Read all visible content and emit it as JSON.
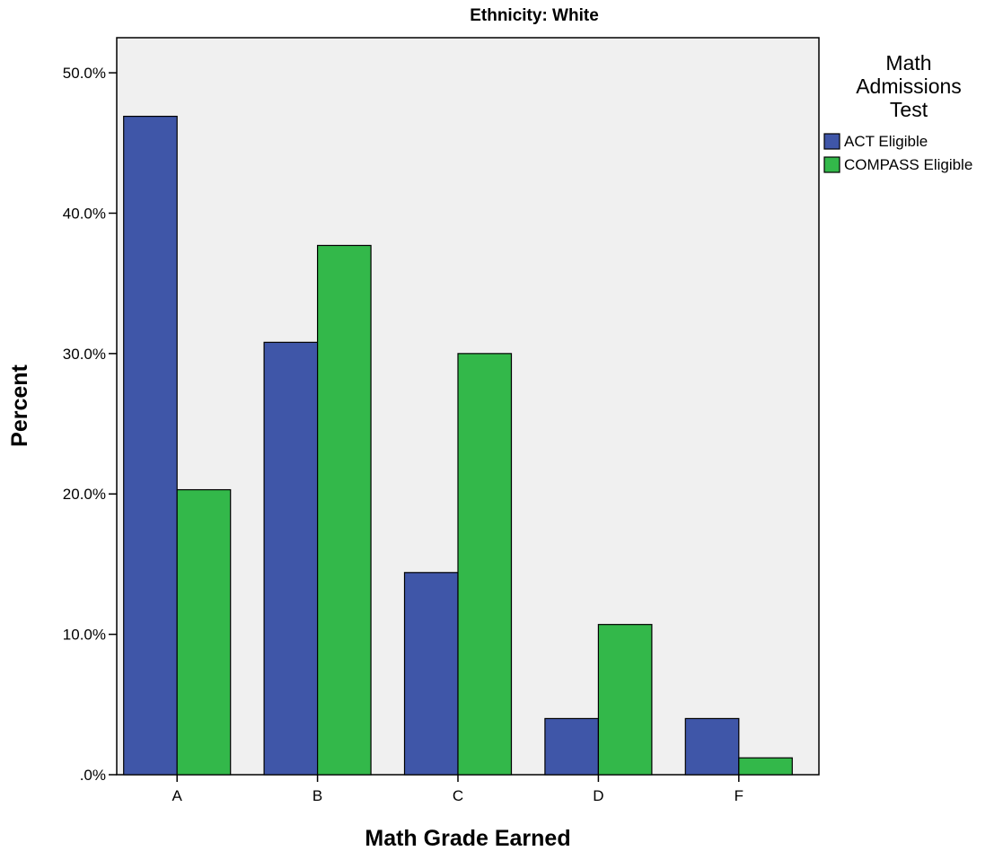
{
  "chart_data": {
    "type": "bar",
    "title": "Ethnicity: White",
    "xlabel": "Math Grade Earned",
    "ylabel": "Percent",
    "categories": [
      "A",
      "B",
      "C",
      "D",
      "F"
    ],
    "y_tick_labels": [
      ".0%",
      "10.0%",
      "20.0%",
      "30.0%",
      "40.0%",
      "50.0%"
    ],
    "y_ticks": [
      0,
      10,
      20,
      30,
      40,
      50
    ],
    "ylim": [
      0,
      52.5
    ],
    "grid": false,
    "legend": {
      "title_lines": [
        "Math",
        "Admissions",
        "Test"
      ],
      "placement": "right"
    },
    "series": [
      {
        "name": "ACT Eligible",
        "color": "#3F56A8",
        "values": [
          46.9,
          30.8,
          14.4,
          4.0,
          4.0
        ]
      },
      {
        "name": "COMPASS Eligible",
        "color": "#33B84A",
        "values": [
          20.3,
          37.7,
          30.0,
          10.7,
          1.2
        ]
      }
    ],
    "plot_background": "#F0F0F0"
  }
}
